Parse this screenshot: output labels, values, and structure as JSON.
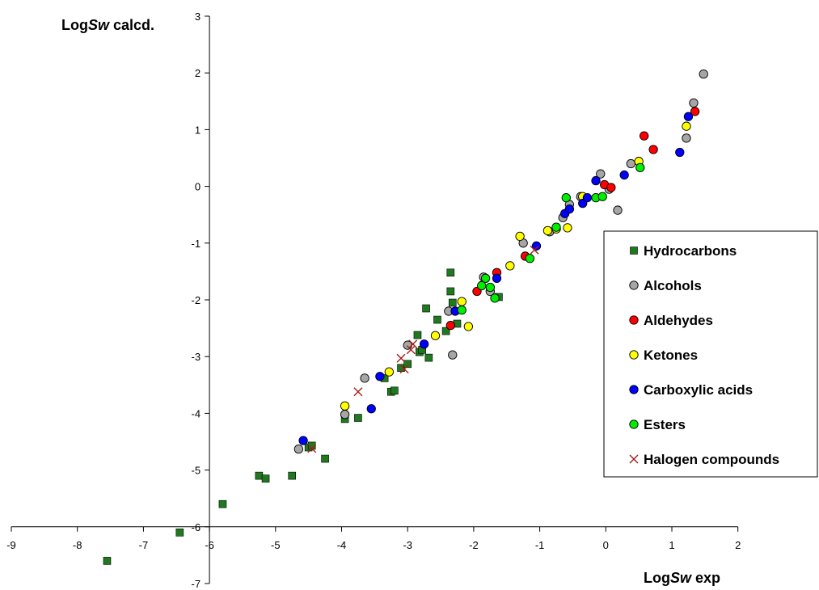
{
  "chart_data": {
    "type": "scatter",
    "title": "",
    "xlabel": {
      "prefix": "Log",
      "italic": "Sw",
      "suffix": " exp"
    },
    "ylabel": {
      "prefix": "Log",
      "italic": "Sw",
      "suffix": " calcd."
    },
    "xlim": [
      -9,
      2
    ],
    "ylim": [
      -7,
      3
    ],
    "xticks": [
      -9,
      -8,
      -7,
      -6,
      -5,
      -4,
      -3,
      -2,
      -1,
      0,
      1,
      2
    ],
    "yticks": [
      -7,
      -6,
      -5,
      -4,
      -3,
      -2,
      -1,
      0,
      1,
      2,
      3
    ],
    "grid": false,
    "legend_position": "right",
    "series": [
      {
        "name": "Hydrocarbons",
        "marker": "square",
        "color": "#1f7a1f",
        "points": [
          [
            -7.55,
            -6.6
          ],
          [
            -6.45,
            -6.1
          ],
          [
            -5.8,
            -5.6
          ],
          [
            -5.25,
            -5.1
          ],
          [
            -5.15,
            -5.15
          ],
          [
            -4.75,
            -5.1
          ],
          [
            -4.5,
            -4.6
          ],
          [
            -4.45,
            -4.57
          ],
          [
            -4.25,
            -4.8
          ],
          [
            -3.95,
            -4.1
          ],
          [
            -3.75,
            -4.08
          ],
          [
            -3.35,
            -3.38
          ],
          [
            -3.25,
            -3.62
          ],
          [
            -3.2,
            -3.6
          ],
          [
            -3.1,
            -3.2
          ],
          [
            -3.0,
            -3.13
          ],
          [
            -2.85,
            -2.62
          ],
          [
            -2.82,
            -2.92
          ],
          [
            -2.78,
            -2.88
          ],
          [
            -2.68,
            -3.02
          ],
          [
            -2.72,
            -2.15
          ],
          [
            -2.55,
            -2.35
          ],
          [
            -2.42,
            -2.55
          ],
          [
            -2.35,
            -1.52
          ],
          [
            -2.35,
            -1.85
          ],
          [
            -2.32,
            -2.05
          ],
          [
            -2.25,
            -2.42
          ],
          [
            -1.62,
            -1.95
          ]
        ]
      },
      {
        "name": "Alcohols",
        "marker": "circle",
        "color": "#a6a6a6",
        "points": [
          [
            -4.65,
            -4.63
          ],
          [
            -3.95,
            -4.02
          ],
          [
            -3.65,
            -3.38
          ],
          [
            -3.0,
            -2.8
          ],
          [
            -2.38,
            -2.2
          ],
          [
            -2.32,
            -2.97
          ],
          [
            -1.85,
            -1.6
          ],
          [
            -1.75,
            -1.85
          ],
          [
            -1.25,
            -1.0
          ],
          [
            -0.85,
            -0.8
          ],
          [
            -0.65,
            -0.55
          ],
          [
            -0.55,
            -0.32
          ],
          [
            -0.38,
            -0.18
          ],
          [
            -0.08,
            0.22
          ],
          [
            0.05,
            -0.05
          ],
          [
            0.18,
            -0.42
          ],
          [
            0.38,
            0.4
          ],
          [
            1.22,
            0.85
          ],
          [
            1.33,
            1.47
          ],
          [
            1.48,
            1.98
          ]
        ]
      },
      {
        "name": "Aldehydes",
        "marker": "circle",
        "color": "#ff0000",
        "points": [
          [
            -2.35,
            -2.45
          ],
          [
            -1.95,
            -1.85
          ],
          [
            -1.65,
            -1.52
          ],
          [
            -1.22,
            -1.23
          ],
          [
            -0.02,
            0.03
          ],
          [
            0.08,
            -0.02
          ],
          [
            0.58,
            0.89
          ],
          [
            0.72,
            0.65
          ],
          [
            1.35,
            1.32
          ]
        ]
      },
      {
        "name": "Ketones",
        "marker": "circle",
        "color": "#ffff00",
        "points": [
          [
            -3.95,
            -3.87
          ],
          [
            -3.28,
            -3.27
          ],
          [
            -2.58,
            -2.63
          ],
          [
            -2.18,
            -2.03
          ],
          [
            -2.08,
            -2.47
          ],
          [
            -1.45,
            -1.4
          ],
          [
            -1.3,
            -0.88
          ],
          [
            -0.88,
            -0.78
          ],
          [
            -0.75,
            -0.75
          ],
          [
            -0.58,
            -0.73
          ],
          [
            -0.35,
            -0.18
          ],
          [
            0.5,
            0.44
          ],
          [
            1.22,
            1.06
          ]
        ]
      },
      {
        "name": "Carboxylic acids",
        "marker": "circle",
        "color": "#0000ff",
        "points": [
          [
            -4.58,
            -4.48
          ],
          [
            -3.55,
            -3.92
          ],
          [
            -3.42,
            -3.35
          ],
          [
            -2.75,
            -2.78
          ],
          [
            -2.28,
            -2.2
          ],
          [
            -1.65,
            -1.62
          ],
          [
            -1.05,
            -1.05
          ],
          [
            -0.62,
            -0.48
          ],
          [
            -0.55,
            -0.4
          ],
          [
            -0.35,
            -0.3
          ],
          [
            -0.28,
            -0.2
          ],
          [
            -0.15,
            0.1
          ],
          [
            0.28,
            0.2
          ],
          [
            1.12,
            0.6
          ],
          [
            1.25,
            1.23
          ]
        ]
      },
      {
        "name": "Esters",
        "marker": "circle",
        "color": "#00ee00",
        "points": [
          [
            -2.18,
            -2.18
          ],
          [
            -1.88,
            -1.75
          ],
          [
            -1.82,
            -1.62
          ],
          [
            -1.75,
            -1.78
          ],
          [
            -1.68,
            -1.97
          ],
          [
            -1.15,
            -1.27
          ],
          [
            -0.75,
            -0.72
          ],
          [
            -0.6,
            -0.2
          ],
          [
            -0.15,
            -0.2
          ],
          [
            -0.05,
            -0.18
          ],
          [
            0.52,
            0.33
          ]
        ]
      },
      {
        "name": "Halogen compounds",
        "marker": "x",
        "color": "#a0201a",
        "points": [
          [
            -4.45,
            -4.62
          ],
          [
            -3.75,
            -3.62
          ],
          [
            -3.1,
            -3.03
          ],
          [
            -3.05,
            -3.22
          ],
          [
            -2.95,
            -2.88
          ],
          [
            -2.92,
            -2.78
          ],
          [
            -1.08,
            -1.12
          ]
        ]
      }
    ]
  }
}
